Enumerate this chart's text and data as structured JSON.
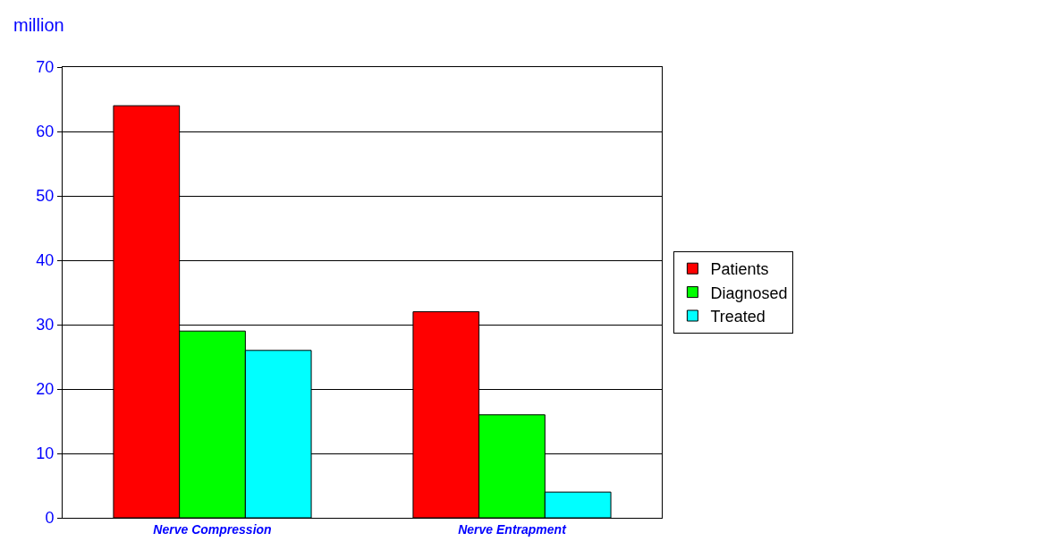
{
  "chart_data": {
    "type": "bar",
    "ylabel": "million",
    "categories": [
      "Nerve Compression",
      "Nerve Entrapment"
    ],
    "series": [
      {
        "name": "Patients",
        "color": "#ff0000",
        "values": [
          64,
          32
        ]
      },
      {
        "name": "Diagnosed",
        "color": "#00ff00",
        "values": [
          29,
          16
        ]
      },
      {
        "name": "Treated",
        "color": "#00ffff",
        "values": [
          26,
          4
        ]
      }
    ],
    "ylim": [
      0,
      70
    ],
    "yticks": [
      0,
      10,
      20,
      30,
      40,
      50,
      60,
      70
    ],
    "grid": "y",
    "legend": "right"
  }
}
